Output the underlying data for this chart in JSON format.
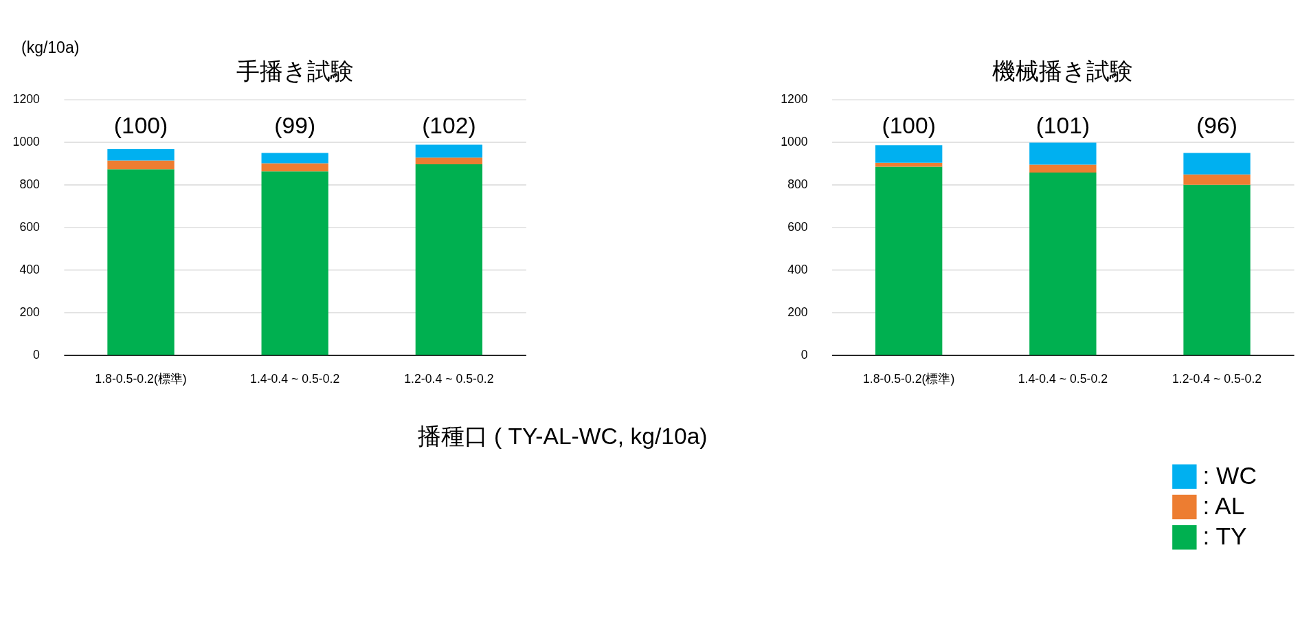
{
  "chart_data": [
    {
      "type": "bar",
      "title": "手播き試験",
      "ylabel": "(kg/10a)",
      "xlabel": "播種口 ( TY-AL-WC, kg/10a)",
      "stacked": true,
      "grid": "y",
      "legend": false,
      "categories": [
        "1.8-0.5-0.2(標準)",
        "1.4-0.4 ~ 0.5-0.2",
        "1.2-0.4 ~ 0.5-0.2"
      ],
      "series": [
        {
          "color": "#00b050",
          "values": [
            872,
            862,
            895
          ]
        },
        {
          "color": "#ed7d31",
          "values": [
            41,
            38,
            32
          ]
        },
        {
          "color": "#00b0f0",
          "values": [
            53,
            49,
            60
          ]
        }
      ],
      "ylim": [
        0,
        1200
      ],
      "yticks": [
        0,
        200,
        400,
        600,
        800,
        1000,
        1200
      ],
      "annotations": [
        "(100)",
        "(99)",
        "(102)"
      ]
    },
    {
      "type": "bar",
      "title": "機械播き試験",
      "stacked": true,
      "grid": "y",
      "legend": "bottom right",
      "categories": [
        "1.8-0.5-0.2(標準)",
        "1.4-0.4 ~ 0.5-0.2",
        "1.2-0.4 ~ 0.5-0.2"
      ],
      "series": [
        {
          "name": ": TY",
          "color": "#00b050",
          "values": [
            884,
            857,
            799
          ]
        },
        {
          "name": ": AL",
          "color": "#ed7d31",
          "values": [
            19,
            37,
            49
          ]
        },
        {
          "name": ": WC",
          "color": "#00b0f0",
          "values": [
            82,
            103,
            101
          ]
        }
      ],
      "ylim": [
        0,
        1200
      ],
      "yticks": [
        0,
        200,
        400,
        600,
        800,
        1000,
        1200
      ],
      "annotations": [
        "(100)",
        "(101)",
        "(96)"
      ]
    }
  ]
}
